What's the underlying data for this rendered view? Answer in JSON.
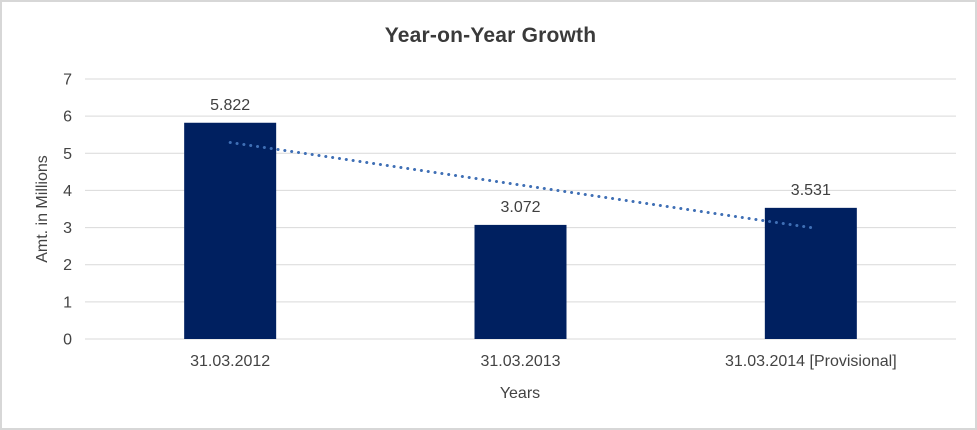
{
  "chart_data": {
    "type": "bar",
    "title": "Year-on-Year Growth",
    "xlabel": "Years",
    "ylabel": "Amt. in Millions",
    "categories": [
      "31.03.2012",
      "31.03.2013",
      "31.03.2014 [Provisional]"
    ],
    "values": [
      5.822,
      3.072,
      3.531
    ],
    "data_labels": [
      "5.822",
      "3.072",
      "3.531"
    ],
    "ylim": [
      0,
      7
    ],
    "yticks": [
      "0",
      "1",
      "2",
      "3",
      "4",
      "5",
      "6",
      "7"
    ],
    "grid": "horizontal",
    "legend": "none",
    "colors": {
      "bar": "#002060",
      "gridline": "#d9d9d9",
      "trendline": "#3f6fb5",
      "title_text": "#3a3a3a",
      "axis_text": "#434343",
      "frame_border": "#d7d7d7",
      "background": "#ffffff"
    },
    "trendline": {
      "type": "linear",
      "style": "dotted",
      "start_value": 5.29,
      "end_value": 3.0
    }
  }
}
